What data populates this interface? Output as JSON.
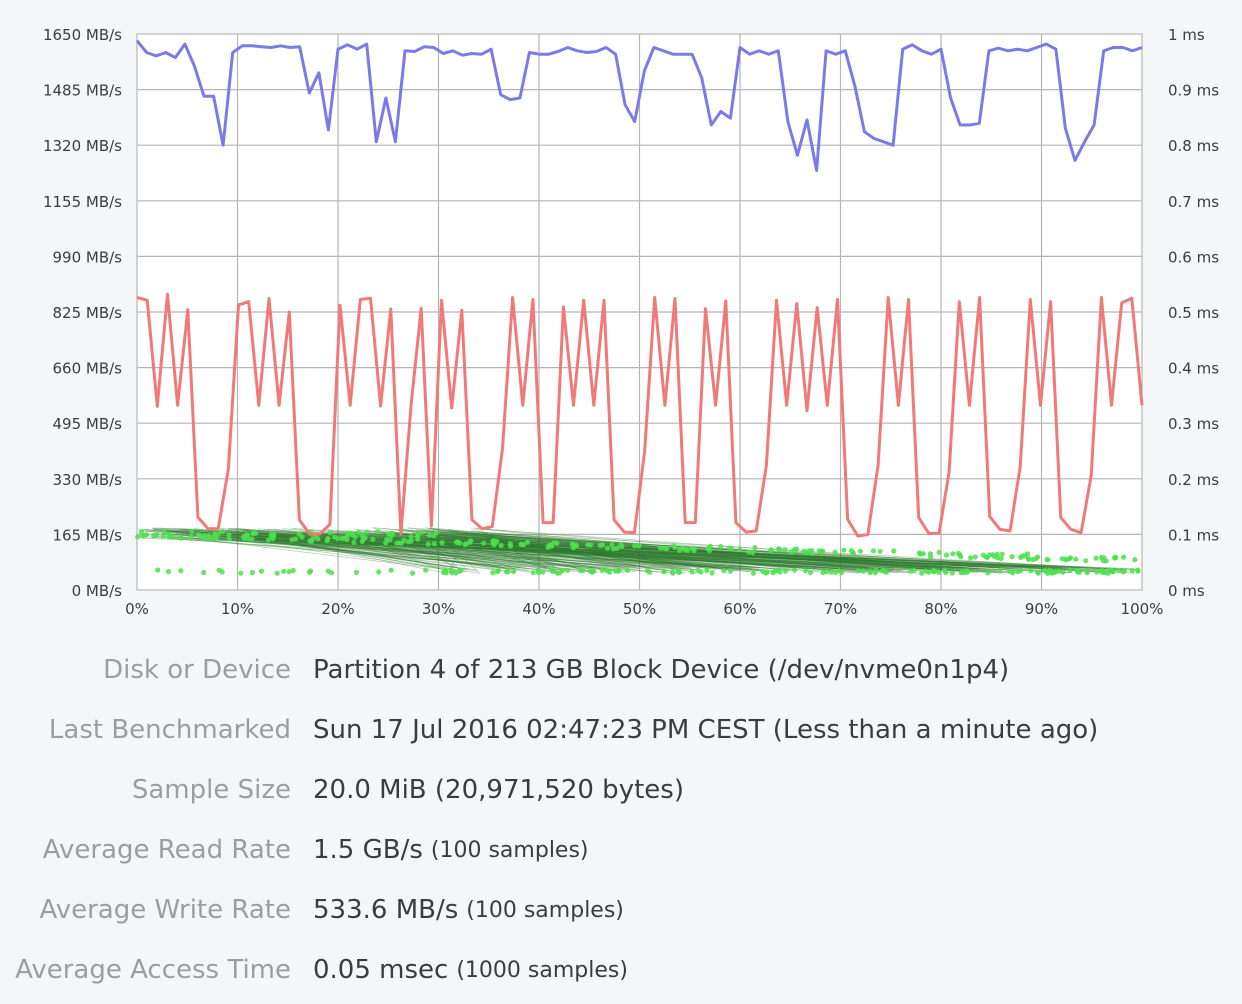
{
  "chart_data": {
    "type": "line",
    "x_ticks": [
      "0%",
      "10%",
      "20%",
      "30%",
      "40%",
      "50%",
      "60%",
      "70%",
      "80%",
      "90%",
      "100%"
    ],
    "y_left_ticks": [
      "1650 MB/s",
      "1485 MB/s",
      "1320 MB/s",
      "1155 MB/s",
      "990 MB/s",
      "825 MB/s",
      "660 MB/s",
      "495 MB/s",
      "330 MB/s",
      "165 MB/s",
      "0 MB/s"
    ],
    "y_right_ticks": [
      "1 ms",
      "0.9 ms",
      "0.8 ms",
      "0.7 ms",
      "0.6 ms",
      "0.5 ms",
      "0.4 ms",
      "0.3 ms",
      "0.2 ms",
      "0.1 ms",
      "0 ms"
    ],
    "ylim_left": [
      0,
      1650
    ],
    "ylim_right": [
      0,
      1
    ],
    "grid": true,
    "series": [
      {
        "color": "#7b7be8",
        "axis": "left",
        "x": [
          0,
          2,
          4,
          6,
          8,
          10,
          12,
          14,
          16,
          18,
          20,
          22,
          24,
          25,
          26,
          28,
          30,
          32,
          34,
          36,
          38,
          40,
          42,
          44,
          46,
          48,
          50,
          52,
          54,
          55,
          56,
          57,
          58,
          59,
          60,
          61,
          62,
          64,
          66,
          68,
          70,
          72,
          74,
          76,
          78,
          80,
          82,
          84,
          85,
          86,
          88,
          90,
          92,
          94,
          96,
          98,
          100,
          102,
          104,
          106,
          108,
          110,
          112,
          114,
          116,
          118,
          120,
          122,
          124,
          126,
          128,
          130,
          132,
          134,
          136,
          138,
          140,
          142,
          144,
          146,
          148,
          150,
          152,
          154,
          156,
          158,
          160,
          162,
          164,
          166,
          168,
          170,
          172,
          174,
          176,
          178,
          180,
          182,
          184,
          186,
          188,
          190,
          192,
          194,
          196,
          198
        ],
        "values": [
          1630,
          1595,
          1585,
          1595,
          1580,
          1620,
          1555,
          1465,
          1465,
          1320,
          1595,
          1615,
          1615,
          1612,
          1610,
          1615,
          1610,
          1612,
          1475,
          1535,
          1365,
          1605,
          1618,
          1605,
          1620,
          1330,
          1460,
          1330,
          1600,
          1598,
          1612,
          1610,
          1592,
          1600,
          1587,
          1592,
          1590,
          1605,
          1470,
          1455,
          1460,
          1595,
          1590,
          1590,
          1598,
          1610,
          1600,
          1595,
          1598,
          1610,
          1590,
          1440,
          1390,
          1540,
          1610,
          1600,
          1590,
          1590,
          1590,
          1520,
          1380,
          1420,
          1400,
          1610,
          1590,
          1600,
          1590,
          1600,
          1390,
          1290,
          1395,
          1245,
          1600,
          1590,
          1600,
          1495,
          1360,
          1340,
          1330,
          1320,
          1605,
          1618,
          1600,
          1590,
          1605,
          1460,
          1380,
          1380,
          1385,
          1600,
          1608,
          1600,
          1605,
          1600,
          1610,
          1620,
          1605,
          1370,
          1275,
          1330,
          1380,
          1600,
          1610,
          1610,
          1600,
          1610
        ],
        "x_unit": "index"
      },
      {
        "color": "#f07a78",
        "axis": "left",
        "values": [
          868,
          860,
          545,
          878,
          548,
          832,
          216,
          182,
          182,
          360,
          846,
          856,
          548,
          865,
          548,
          825,
          208,
          166,
          166,
          195,
          845,
          548,
          862,
          866,
          546,
          834,
          166,
          550,
          836,
          190,
          860,
          540,
          830,
          208,
          182,
          188,
          420,
          868,
          548,
          862,
          200,
          200,
          840,
          548,
          860,
          548,
          860,
          208,
          172,
          170,
          410,
          868,
          548,
          865,
          200,
          200,
          835,
          548,
          858,
          200,
          172,
          175,
          370,
          860,
          548,
          850,
          532,
          838,
          548,
          862,
          210,
          160,
          165,
          370,
          868,
          548,
          862,
          215,
          168,
          168,
          350,
          856,
          548,
          868,
          218,
          180,
          175,
          365,
          862,
          548,
          856,
          215,
          180,
          170,
          340,
          868,
          548,
          852,
          866,
          548
        ],
        "x_unit": "index"
      },
      {
        "color": "#4ee04e",
        "axis": "right",
        "type": "scatter",
        "description_range_ms": [
          0.05,
          0.12
        ]
      }
    ]
  },
  "info": {
    "rows": [
      {
        "label": "Disk or Device",
        "value": "Partition 4 of 213 GB Block Device (/dev/nvme0n1p4)",
        "sub": ""
      },
      {
        "label": "Last Benchmarked",
        "value": "Sun 17 Jul 2016 02:47:23 PM CEST (Less than a minute ago)",
        "sub": ""
      },
      {
        "label": "Sample Size",
        "value": "20.0 MiB (20,971,520 bytes)",
        "sub": ""
      },
      {
        "label": "Average Read Rate",
        "value": "1.5 GB/s",
        "sub": "(100 samples)"
      },
      {
        "label": "Average Write Rate",
        "value": "533.6 MB/s",
        "sub": "(100 samples)"
      },
      {
        "label": "Average Access Time",
        "value": "0.05 msec",
        "sub": "(1000 samples)"
      }
    ]
  }
}
